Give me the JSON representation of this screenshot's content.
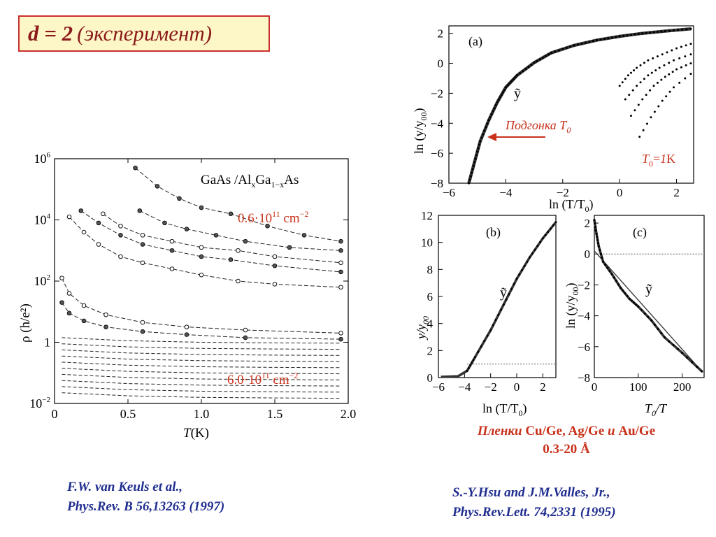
{
  "title": {
    "main": "d = 2",
    "paren": "(эксперимент)"
  },
  "chart_data": [
    {
      "type": "scatter",
      "panel": "left",
      "title": "GaAs /AlxGa1−xAs",
      "title_parts": {
        "a": "GaAs /Al",
        "sub1": "x",
        "b": "Ga",
        "sub2": "1−x",
        "c": "As"
      },
      "xlabel_main": "T",
      "xlabel_unit": "(K)",
      "ylabel_main": "ρ",
      "ylabel_unit": "(h/e²)",
      "xlim": [
        0,
        2.0
      ],
      "ylim_log10": [
        -2,
        6
      ],
      "log_y": true,
      "xticks": [
        "0",
        "0.5",
        "1.0",
        "1.5",
        "2.0"
      ],
      "yticks": [
        {
          "base": "10",
          "exp": "6"
        },
        {
          "base": "10",
          "exp": "4"
        },
        {
          "base": "10",
          "exp": "2"
        },
        {
          "base": "1",
          "exp": ""
        },
        {
          "base": "10",
          "exp": "−2"
        }
      ],
      "annotations": {
        "top": {
          "text": "0.6·10",
          "exp": "11",
          "unit": " cm",
          "unit_exp": "−2"
        },
        "bottom": {
          "text": "6.0·10",
          "exp": "11",
          "unit": " cm",
          "unit_exp": "−2"
        }
      },
      "series": [
        {
          "values_log10": [
            [
              0.55,
              5.7
            ],
            [
              0.7,
              5.1
            ],
            [
              0.85,
              4.7
            ],
            [
              1.0,
              4.4
            ],
            [
              1.2,
              4.2
            ],
            [
              1.45,
              3.8
            ],
            [
              1.7,
              3.5
            ],
            [
              1.95,
              3.3
            ]
          ]
        },
        {
          "values_log10": [
            [
              0.1,
              4.1
            ],
            [
              0.2,
              3.6
            ],
            [
              0.3,
              3.2
            ],
            [
              0.45,
              2.8
            ],
            [
              0.6,
              2.6
            ],
            [
              0.8,
              2.4
            ],
            [
              1.0,
              2.2
            ],
            [
              1.25,
              2.0
            ],
            [
              1.5,
              1.9
            ],
            [
              1.95,
              1.8
            ]
          ]
        },
        {
          "values_log10": [
            [
              0.18,
              4.3
            ],
            [
              0.3,
              3.9
            ],
            [
              0.45,
              3.5
            ],
            [
              0.6,
              3.2
            ],
            [
              0.8,
              3.0
            ],
            [
              1.0,
              2.8
            ],
            [
              1.2,
              2.7
            ],
            [
              1.5,
              2.5
            ],
            [
              1.95,
              2.3
            ]
          ]
        },
        {
          "values_log10": [
            [
              0.33,
              4.2
            ],
            [
              0.45,
              3.8
            ],
            [
              0.6,
              3.5
            ],
            [
              0.8,
              3.3
            ],
            [
              1.0,
              3.1
            ],
            [
              1.25,
              3.0
            ],
            [
              1.5,
              2.8
            ],
            [
              1.95,
              2.6
            ]
          ]
        },
        {
          "values_log10": [
            [
              0.58,
              4.3
            ],
            [
              0.75,
              3.9
            ],
            [
              0.9,
              3.7
            ],
            [
              1.1,
              3.5
            ],
            [
              1.3,
              3.3
            ],
            [
              1.6,
              3.1
            ],
            [
              1.95,
              3.0
            ]
          ]
        },
        {
          "values_log10": [
            [
              0.05,
              2.1
            ],
            [
              0.1,
              1.6
            ],
            [
              0.2,
              1.2
            ],
            [
              0.35,
              0.9
            ],
            [
              0.6,
              0.65
            ],
            [
              0.9,
              0.5
            ],
            [
              1.3,
              0.4
            ],
            [
              1.95,
              0.3
            ]
          ]
        },
        {
          "values_log10": [
            [
              0.05,
              1.3
            ],
            [
              0.1,
              0.95
            ],
            [
              0.2,
              0.7
            ],
            [
              0.35,
              0.5
            ],
            [
              0.6,
              0.35
            ],
            [
              0.9,
              0.25
            ],
            [
              1.3,
              0.15
            ],
            [
              1.95,
              0.1
            ]
          ]
        }
      ]
    },
    {
      "type": "scatter",
      "panel": "a",
      "label": "(a)",
      "xlabel_text": "ln (T/T",
      "xlabel_sub": "0",
      "xlabel_close": ")",
      "ylabel_text": "ln (y/y",
      "ylabel_sub": "00",
      "ylabel_close": ")",
      "xlim": [
        -6,
        2.6
      ],
      "ylim": [
        -8,
        2.5
      ],
      "xticks": [
        -6,
        -4,
        -2,
        0,
        2
      ],
      "yticks": [
        -8,
        -6,
        -4,
        -2,
        0,
        2
      ],
      "curve_label": "ỹ",
      "fit_label": "Подгонка T",
      "fit_label_sub": "0",
      "t0_label": {
        "a": "T",
        "sub": "0",
        "b": "=",
        "c": "1",
        "d": "K"
      },
      "master_curve": [
        [
          -5.3,
          -8
        ],
        [
          -5.1,
          -6.6
        ],
        [
          -4.9,
          -5.2
        ],
        [
          -4.6,
          -3.8
        ],
        [
          -4.3,
          -2.6
        ],
        [
          -4.0,
          -1.6
        ],
        [
          -3.6,
          -0.8
        ],
        [
          -3.0,
          0.05
        ],
        [
          -2.4,
          0.7
        ],
        [
          -1.6,
          1.2
        ],
        [
          -0.8,
          1.55
        ],
        [
          0,
          1.8
        ],
        [
          0.8,
          2.0
        ],
        [
          1.6,
          2.15
        ],
        [
          2.5,
          2.3
        ]
      ],
      "branches": [
        [
          [
            0.0,
            -1.5
          ],
          [
            0.3,
            -0.8
          ],
          [
            0.6,
            -0.3
          ],
          [
            1.0,
            0.2
          ],
          [
            1.5,
            0.6
          ],
          [
            2.0,
            1.0
          ],
          [
            2.5,
            1.3
          ]
        ],
        [
          [
            0.2,
            -2.4
          ],
          [
            0.6,
            -1.5
          ],
          [
            1.0,
            -0.8
          ],
          [
            1.4,
            -0.3
          ],
          [
            1.9,
            0.2
          ],
          [
            2.5,
            0.6
          ]
        ],
        [
          [
            0.4,
            -3.5
          ],
          [
            0.8,
            -2.4
          ],
          [
            1.2,
            -1.5
          ],
          [
            1.6,
            -0.9
          ],
          [
            2.0,
            -0.4
          ],
          [
            2.5,
            0.0
          ]
        ],
        [
          [
            0.7,
            -4.9
          ],
          [
            1.1,
            -3.6
          ],
          [
            1.5,
            -2.5
          ],
          [
            1.9,
            -1.6
          ],
          [
            2.5,
            -0.7
          ]
        ]
      ]
    },
    {
      "type": "scatter",
      "panel": "b",
      "label": "(b)",
      "xlabel_text": "ln (T/T",
      "xlabel_sub": "0",
      "xlabel_close": ")",
      "ylabel_text": "y/y",
      "ylabel_sub": "00",
      "xlim": [
        -6,
        3
      ],
      "ylim": [
        0,
        12
      ],
      "xticks": [
        -6,
        -4,
        -2,
        0,
        2
      ],
      "yticks": [
        0,
        2,
        4,
        6,
        8,
        10,
        12
      ],
      "curve_label": "ỹ",
      "line": [
        [
          -5.8,
          0.05
        ],
        [
          -4.5,
          0.1
        ],
        [
          -3.8,
          0.5
        ],
        [
          -3.2,
          1.5
        ],
        [
          -2.0,
          3.5
        ],
        [
          -1.0,
          5.4
        ],
        [
          0,
          7.3
        ],
        [
          1.0,
          8.9
        ],
        [
          2.0,
          10.3
        ],
        [
          3.0,
          11.5
        ]
      ],
      "dotted_level": 1.0
    },
    {
      "type": "scatter",
      "panel": "c",
      "label": "(c)",
      "xlabel_text": "T",
      "xlabel_sub": "0",
      "xlabel_close": "/T",
      "ylabel_text": "ln (y/y",
      "ylabel_sub": "00",
      "ylabel_close": ")",
      "xlim": [
        0,
        250
      ],
      "ylim": [
        -8,
        2.5
      ],
      "xticks": [
        0,
        100,
        200
      ],
      "yticks": [
        -8,
        -6,
        -4,
        -2,
        0,
        2
      ],
      "curve_label": "ỹ",
      "curve": [
        [
          0,
          2.2
        ],
        [
          5,
          1.3
        ],
        [
          10,
          0.5
        ],
        [
          20,
          -0.5
        ],
        [
          40,
          -1.3
        ],
        [
          60,
          -2.2
        ],
        [
          80,
          -2.9
        ],
        [
          100,
          -3.4
        ],
        [
          130,
          -4.3
        ],
        [
          160,
          -5.4
        ],
        [
          200,
          -6.4
        ],
        [
          245,
          -7.6
        ]
      ],
      "line": [
        [
          0,
          0.2
        ],
        [
          245,
          -7.6
        ]
      ],
      "dotted_level": 0
    }
  ],
  "captions": {
    "left_line1": "F.W. van Keuls et al.,",
    "left_line2": "Phys.Rev. B 56,13263 (1997)",
    "right_line1": "S.-Y.Hsu and J.M.Valles, Jr.,",
    "right_line2": "Phys.Rev.Lett. 74,2331 (1995)"
  },
  "films": {
    "word": "Пленки",
    "a": "Cu/Ge, Ag/Ge",
    "and": "и",
    "b": "Au/Ge",
    "range": "0.3-20 Å"
  },
  "colors": {
    "accent_red": "#c8311a",
    "caption_blue": "#1f2d8f",
    "title_bg": "#fdf7c8"
  }
}
